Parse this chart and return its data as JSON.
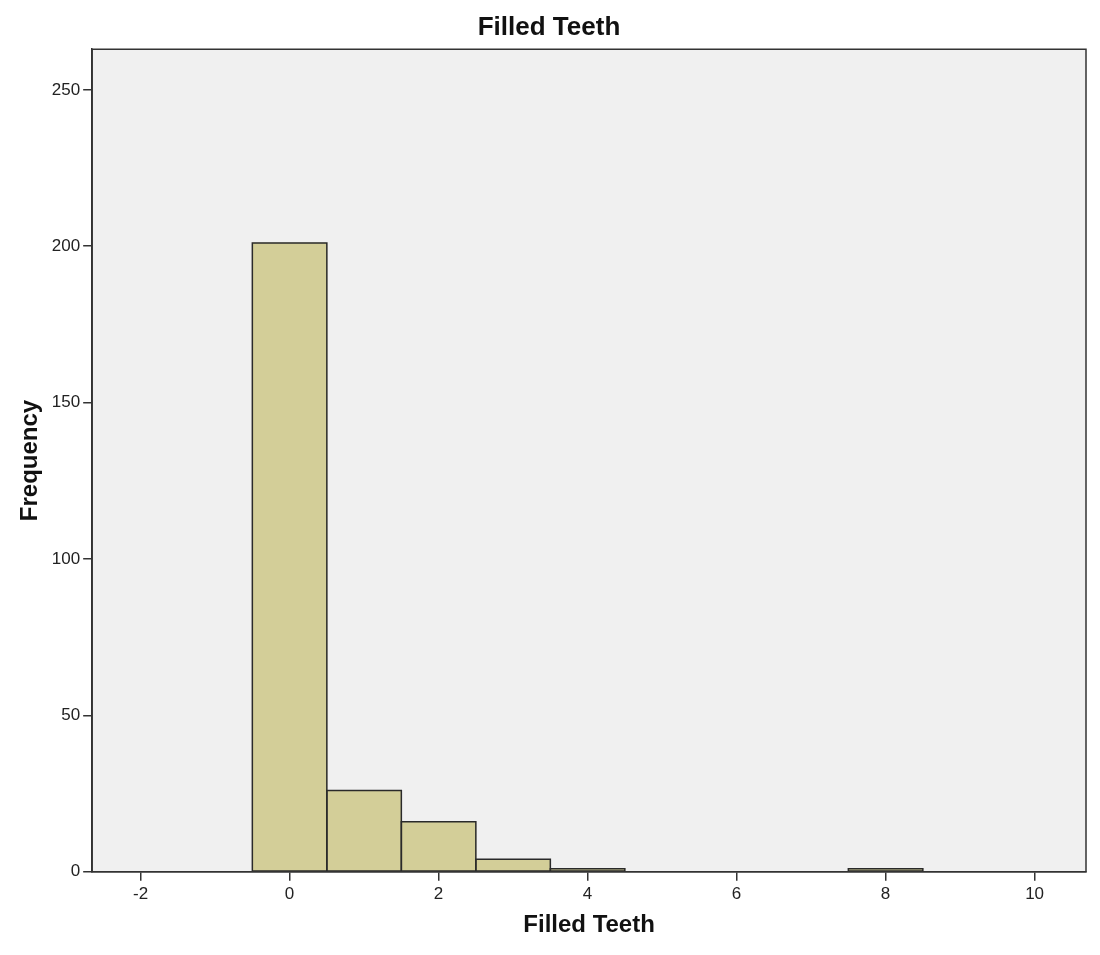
{
  "chart_data": {
    "type": "histogram",
    "title": "Filled Teeth",
    "xlabel": "Filled Teeth",
    "ylabel": "Frequency",
    "bins": [
      -0.5,
      0.5,
      1.5,
      2.5,
      3.5,
      4.5,
      5.5,
      6.5,
      7.5,
      8.5
    ],
    "values": [
      201,
      26,
      16,
      4,
      1,
      0,
      0,
      0,
      1
    ],
    "color": "#d3ce98",
    "xlim": [
      -2.65,
      10.69
    ],
    "xticks": [
      -2,
      0,
      2,
      4,
      6,
      8,
      10
    ],
    "ylim": [
      0,
      263
    ],
    "yticks": [
      0,
      50,
      100,
      150,
      200,
      250
    ],
    "grid": false,
    "legend": false
  }
}
